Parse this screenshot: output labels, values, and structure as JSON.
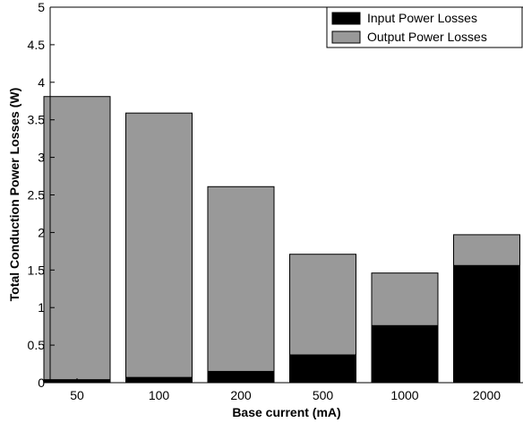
{
  "chart_data": {
    "type": "bar",
    "stacked": true,
    "categories": [
      "50",
      "100",
      "200",
      "500",
      "1000",
      "2000"
    ],
    "series": [
      {
        "name": "Input Power Losses",
        "color": "#000000",
        "values": [
          0.04,
          0.07,
          0.15,
          0.37,
          0.76,
          1.56
        ]
      },
      {
        "name": "Output Power Losses",
        "color": "#999999",
        "values": [
          3.77,
          3.52,
          2.46,
          1.34,
          0.7,
          0.41
        ]
      }
    ],
    "xlabel": "Base current (mA)",
    "ylabel": "Total Conduction Power Losses (W)",
    "ylim": [
      0,
      5
    ],
    "yticks": [
      "0",
      "0.5",
      "1",
      "1.5",
      "2",
      "2.5",
      "3",
      "3.5",
      "4",
      "4.5",
      "5"
    ],
    "grid": false,
    "legend_position": "top-right"
  }
}
